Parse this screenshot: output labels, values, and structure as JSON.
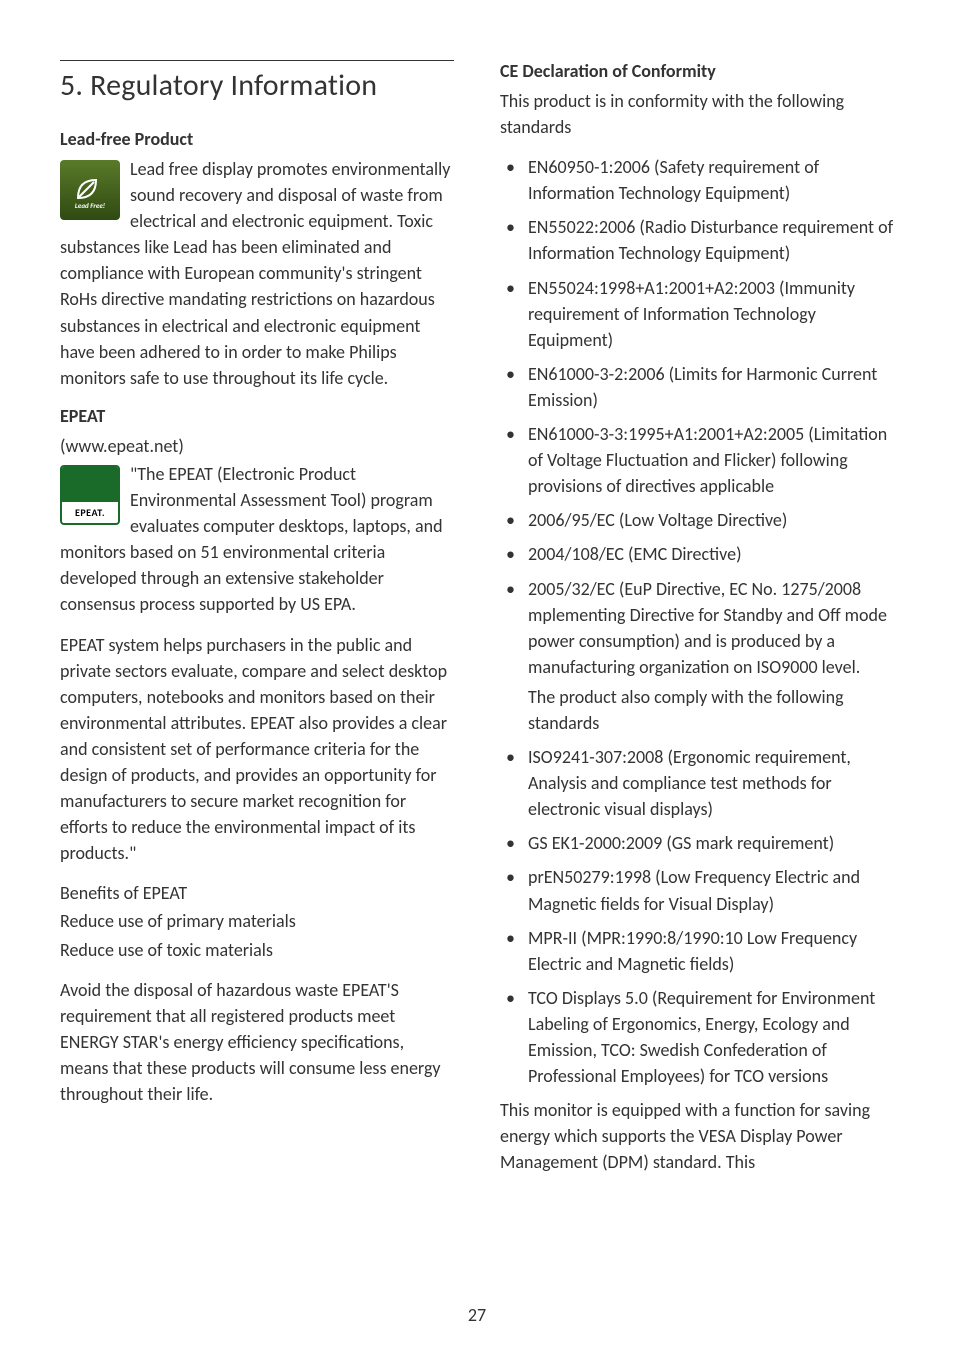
{
  "page_number": "27",
  "left": {
    "section_title": "5.  Regulatory Information",
    "lead_free": {
      "heading": "Lead-free Product",
      "body": "Lead free display promotes environmentally sound recovery and disposal of waste from electrical and electronic equipment. Toxic substances like Lead has been eliminated and compliance with European community's stringent RoHs directive mandating restrictions on hazardous substances in electrical and electronic equipment have been adhered to in order to make Philips monitors safe to use throughout its life cycle."
    },
    "epeat": {
      "heading": "EPEAT",
      "url": "(www.epeat.net)",
      "body1": "\"The EPEAT (Electronic Product Environmental Assessment Tool) program evaluates computer desktops, laptops, and monitors based on 51 environmental criteria developed through an extensive stakeholder consensus process supported by US EPA.",
      "body2": "EPEAT system helps purchasers in the public and private sectors evaluate, compare and select desktop computers, notebooks and monitors based on their environmental attributes. EPEAT also provides a clear and consistent set of performance criteria for the design of products, and provides an opportunity for manufacturers to secure market recognition for efforts to reduce the environmental impact of its products.\"",
      "benefits_heading": "Benefits of EPEAT",
      "benefits_l1": "Reduce use of primary materials",
      "benefits_l2": "Reduce use of toxic materials",
      "body3": "Avoid the disposal of hazardous waste EPEAT'S requirement that all registered products meet ENERGY STAR's energy efficiency specifications, means that these products will consume less energy throughout their life."
    }
  },
  "right": {
    "ce_heading": "CE Declaration of Conformity",
    "ce_intro": "This product is in conformity with the following standards",
    "standards": [
      {
        "text": "EN60950-1:2006 (Safety requirement of Information Technology Equipment)"
      },
      {
        "text": "EN55022:2006 (Radio Disturbance requirement of Information Technology Equipment)"
      },
      {
        "text": "EN55024:1998+A1:2001+A2:2003 (Immunity requirement of Information Technology Equipment)"
      },
      {
        "text": "EN61000-3-2:2006 (Limits for Harmonic Current Emission)"
      },
      {
        "text": "EN61000-3-3:1995+A1:2001+A2:2005 (Limitation of Voltage Fluctuation and Flicker) following provisions of directives applicable"
      },
      {
        "text": "2006/95/EC (Low Voltage Directive)"
      },
      {
        "text": "2004/108/EC (EMC Directive)"
      },
      {
        "text": "2005/32/EC (EuP Directive, EC No. 1275/2008 mplementing Directive for Standby and Off mode power consumption) and is produced by a manufacturing organization on ISO9000 level.",
        "extra": "The product also comply with the following standards"
      },
      {
        "text": "ISO9241-307:2008 (Ergonomic requirement, Analysis and compliance test methods for electronic visual displays)"
      },
      {
        "text": "GS EK1-2000:2009 (GS mark requirement)"
      },
      {
        "text": "prEN50279:1998 (Low Frequency Electric and Magnetic fields for Visual Display)"
      },
      {
        "text": "MPR-II (MPR:1990:8/1990:10 Low Frequency Electric and Magnetic fields)"
      },
      {
        "text": "TCO Displays 5.0 (Requirement for Environment Labeling of Ergonomics, Energy, Ecology and Emission, TCO: Swedish Confederation of Professional Employees) for TCO versions"
      }
    ],
    "ce_footer": "This monitor is equipped with a function for saving energy which supports the VESA Display Power Management (DPM) standard. This"
  }
}
